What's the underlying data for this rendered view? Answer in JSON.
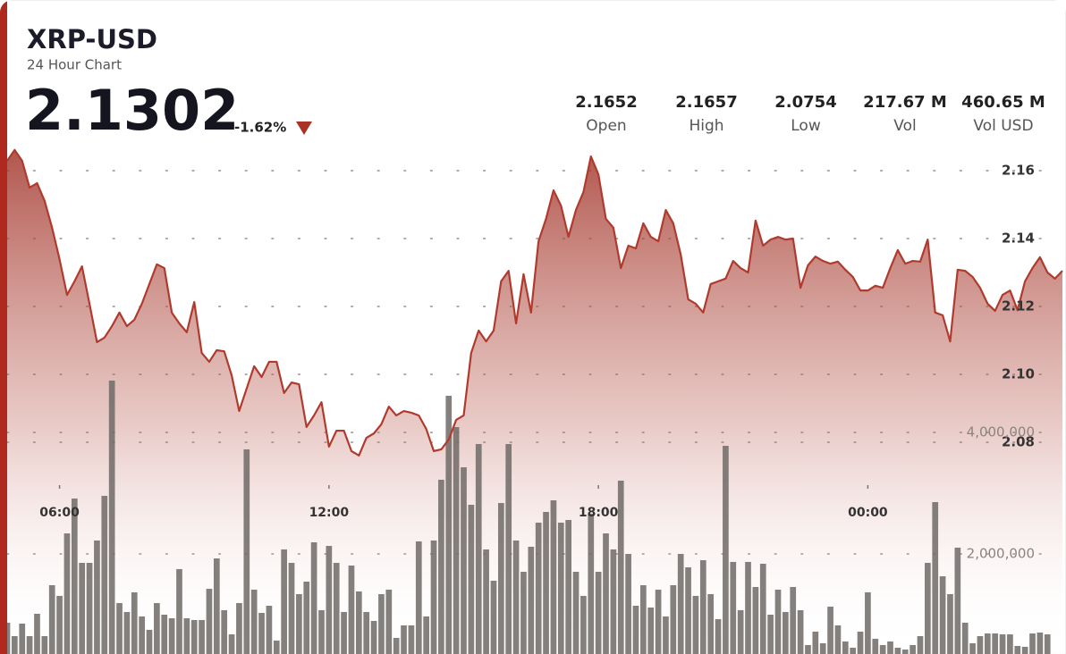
{
  "chart_data": {
    "type": "line",
    "title": "XRP-USD",
    "subtitle": "24 Hour Chart",
    "last_price": "2.1302",
    "change": "-1.62%",
    "stats": [
      {
        "value": "2.1652",
        "label": "Open"
      },
      {
        "value": "2.1657",
        "label": "High"
      },
      {
        "value": "2.0754",
        "label": "Low"
      },
      {
        "value": "217.67 M",
        "label": "Vol"
      },
      {
        "value": "460.65 M",
        "label": "Vol USD"
      }
    ],
    "categories": [
      null,
      null,
      null,
      null,
      null,
      null,
      null,
      "06:00",
      null,
      null,
      null,
      null,
      null,
      null,
      null,
      null,
      null,
      null,
      null,
      null,
      null,
      null,
      null,
      null,
      null,
      null,
      null,
      null,
      null,
      null,
      null,
      null,
      null,
      null,
      null,
      null,
      null,
      null,
      null,
      null,
      null,
      null,
      null,
      "12:00",
      null,
      null,
      null,
      null,
      null,
      null,
      null,
      null,
      null,
      null,
      null,
      null,
      null,
      null,
      null,
      null,
      null,
      null,
      null,
      null,
      null,
      null,
      null,
      null,
      null,
      null,
      null,
      null,
      null,
      null,
      null,
      null,
      null,
      null,
      null,
      "18:00",
      null,
      null,
      null,
      null,
      null,
      null,
      null,
      null,
      null,
      null,
      null,
      null,
      null,
      null,
      null,
      null,
      null,
      null,
      null,
      null,
      null,
      null,
      null,
      null,
      null,
      null,
      null,
      null,
      null,
      null,
      null,
      null,
      null,
      null,
      null,
      "00:00",
      null,
      null,
      null,
      null,
      null,
      null,
      null,
      null,
      null,
      null,
      null,
      null,
      null,
      null,
      null,
      null,
      null,
      null,
      null,
      null,
      null,
      null,
      null,
      null,
      null,
      null
    ],
    "series": [
      {
        "type": "line",
        "color": "#b03a2e",
        "values": [
          2.1629,
          2.1661,
          2.1629,
          2.155,
          2.1563,
          2.1511,
          2.1432,
          2.1339,
          2.1234,
          2.1274,
          2.1318,
          2.1208,
          2.1095,
          2.1108,
          2.1142,
          2.1182,
          2.1142,
          2.1161,
          2.1208,
          2.1266,
          2.1324,
          2.1313,
          2.1182,
          2.115,
          2.1124,
          2.1213,
          2.1063,
          2.1037,
          2.1071,
          2.1068,
          2.0997,
          2.0892,
          2.0958,
          2.1024,
          2.0992,
          2.1037,
          2.1037,
          2.0945,
          2.0976,
          2.0971,
          2.0845,
          2.0879,
          2.0918,
          2.0787,
          2.0834,
          2.0834,
          2.0774,
          2.0761,
          2.0813,
          2.0826,
          2.0853,
          2.0905,
          2.0879,
          2.0892,
          2.0887,
          2.0879,
          2.0839,
          2.0774,
          2.0779,
          2.0808,
          2.0866,
          2.0879,
          2.1063,
          2.1129,
          2.1097,
          2.1129,
          2.1274,
          2.1305,
          2.115,
          2.1295,
          2.1182,
          2.1392,
          2.1458,
          2.1542,
          2.1497,
          2.1405,
          2.1484,
          2.1537,
          2.1642,
          2.1589,
          2.1458,
          2.1432,
          2.1313,
          2.1379,
          2.1371,
          2.1445,
          2.1405,
          2.1392,
          2.1484,
          2.1445,
          2.1353,
          2.1221,
          2.1208,
          2.1182,
          2.1266,
          2.1274,
          2.1282,
          2.1334,
          2.1313,
          2.13,
          2.1453,
          2.1379,
          2.1397,
          2.1405,
          2.1397,
          2.14,
          2.1255,
          2.1321,
          2.1347,
          2.1334,
          2.1326,
          2.1332,
          2.1308,
          2.1287,
          2.1247,
          2.1247,
          2.1261,
          2.1255,
          2.1313,
          2.1366,
          2.1326,
          2.1334,
          2.1332,
          2.1397,
          2.1182,
          2.1174,
          2.1097,
          2.1308,
          2.1305,
          2.1287,
          2.1255,
          2.1208,
          2.1187,
          2.1234,
          2.1247,
          2.1189,
          2.1274,
          2.1313,
          2.1345,
          2.13,
          2.1282,
          2.1305
        ]
      },
      {
        "type": "bar",
        "axis": "y2",
        "color": "#6f6a66",
        "values": [
          868000,
          647000,
          853000,
          647000,
          1015000,
          647000,
          1485000,
          1309000,
          2338000,
          2912000,
          1853000,
          1853000,
          2221000,
          2956000,
          4853000,
          1191000,
          1044000,
          1368000,
          971000,
          750000,
          1191000,
          1000000,
          941000,
          1750000,
          941000,
          912000,
          912000,
          1426000,
          1926000,
          1074000,
          676000,
          1191000,
          3721000,
          1412000,
          1029000,
          1147000,
          574000,
          2074000,
          1853000,
          1338000,
          1544000,
          2191000,
          1074000,
          2132000,
          1853000,
          1044000,
          1809000,
          1382000,
          1044000,
          897000,
          1338000,
          1412000,
          618000,
          824000,
          824000,
          2206000,
          971000,
          2221000,
          3221000,
          4603000,
          4088000,
          3426000,
          2809000,
          3809000,
          2074000,
          1559000,
          2838000,
          3809000,
          2221000,
          1706000,
          2118000,
          2515000,
          2691000,
          2882000,
          2515000,
          2559000,
          1706000,
          1309000,
          2662000,
          1706000,
          2338000,
          2074000,
          3206000,
          2000000,
          1147000,
          1485000,
          1118000,
          1412000,
          971000,
          1485000,
          2000000,
          1779000,
          1309000,
          1897000,
          1338000,
          926000,
          3779000,
          1868000,
          1074000,
          1868000,
          1456000,
          1838000,
          1000000,
          1412000,
          1044000,
          1456000,
          1074000,
          500000,
          721000,
          529000,
          1132000,
          824000,
          559000,
          456000,
          721000,
          1368000,
          603000,
          500000,
          559000,
          456000,
          426000,
          500000,
          647000,
          1853000,
          2853000,
          1632000,
          1338000,
          2103000,
          868000,
          529000,
          647000,
          691000,
          691000,
          676000,
          676000,
          485000,
          471000,
          691000,
          706000,
          676000,
          353000,
          353000
        ]
      }
    ],
    "ylim": [
      2.02,
      2.17
    ],
    "yticks": [
      2.08,
      {
        "value": 2.1,
        "label": "2.10"
      },
      2.12,
      2.14,
      2.16
    ],
    "y2lim": [
      485000,
      8868000
    ],
    "y2ticks": [
      {
        "value": 2000000,
        "label": "2,000,000"
      },
      {
        "value": 4000000,
        "label": "4,000,000"
      }
    ],
    "grid": true
  }
}
